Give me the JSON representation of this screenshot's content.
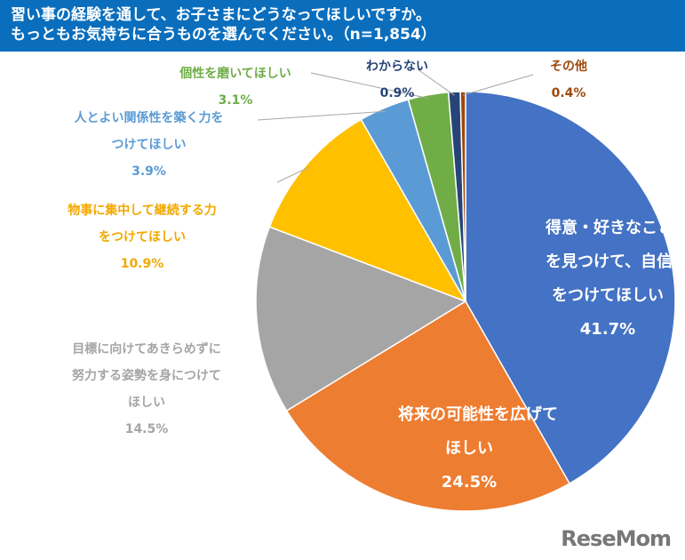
{
  "header": {
    "line1": "習い事の経験を通して、お子さまにどうなってほしいですか。",
    "line2": "もっともお気持ちに合うものを選んでください。（n=1,854）"
  },
  "chart_data": {
    "type": "pie",
    "title": "習い事の経験を通して、お子さまにどうなってほしいですか。もっともお気持ちに合うものを選んでください。（n=1,854）",
    "start": "12 o'clock",
    "direction": "clockwise",
    "slices": [
      {
        "label": "得意・好きなことを見つけて、自信をつけてほしい",
        "lines": [
          "得意・好きなこと",
          "を見つけて、自信",
          "をつけてほしい"
        ],
        "value": 41.7,
        "pct": "41.7%",
        "color": "#4472C4"
      },
      {
        "label": "将来の可能性を広げてほしい",
        "lines": [
          "将来の可能性を広げて",
          "ほしい"
        ],
        "value": 24.5,
        "pct": "24.5%",
        "color": "#ED7D31"
      },
      {
        "label": "目標に向けてあきらめずに努力する姿勢を身につけてほしい",
        "lines": [
          "目標に向けてあきらめずに",
          "努力する姿勢を身につけて",
          "ほしい"
        ],
        "value": 14.5,
        "pct": "14.5%",
        "color": "#A5A5A5"
      },
      {
        "label": "物事に集中して継続する力をつけてほしい",
        "lines": [
          "物事に集中して継続する力",
          "をつけてほしい"
        ],
        "value": 10.9,
        "pct": "10.9%",
        "color": "#FFC000"
      },
      {
        "label": "人とよい関係性を築く力をつけてほしい",
        "lines": [
          "人とよい関係性を築く力を",
          "つけてほしい"
        ],
        "value": 3.9,
        "pct": "3.9%",
        "color": "#5B9BD5"
      },
      {
        "label": "個性を磨いてほしい",
        "lines": [
          "個性を磨いてほしい"
        ],
        "value": 3.1,
        "pct": "3.1%",
        "color": "#70AD47"
      },
      {
        "label": "わからない",
        "lines": [
          "わからない"
        ],
        "value": 0.9,
        "pct": "0.9%",
        "color": "#264478"
      },
      {
        "label": "その他",
        "lines": [
          "その他"
        ],
        "value": 0.4,
        "pct": "0.4%",
        "color": "#9E480E"
      }
    ]
  },
  "watermark": "ReseMom"
}
